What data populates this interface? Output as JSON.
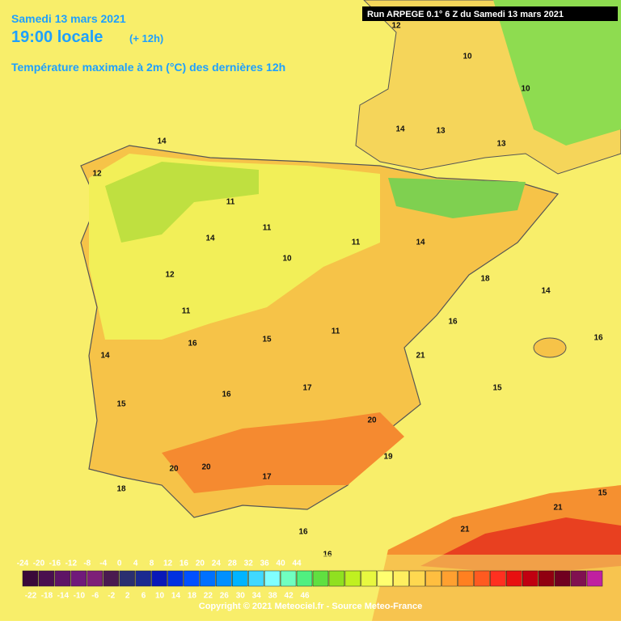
{
  "header": {
    "date": "Samedi 13 mars 2021",
    "time": "19:00 locale",
    "offset": "(+ 12h)",
    "parameter": "Température maximale à 2m (°C) des dernières 12h",
    "run": "Run ARPEGE 0.1° 6 Z du Samedi 13 mars 2021"
  },
  "map_labels": [
    12,
    10,
    10,
    14,
    13,
    13,
    14,
    12,
    11,
    11,
    14,
    10,
    11,
    14,
    12,
    11,
    18,
    14,
    14,
    16,
    15,
    11,
    21,
    15,
    15,
    16,
    17,
    20,
    20,
    20,
    17,
    16,
    16,
    21,
    21,
    15,
    16,
    16,
    19,
    18
  ],
  "colorbar": {
    "top_ticks": [
      -24,
      -20,
      -16,
      -12,
      -8,
      -4,
      0,
      4,
      8,
      12,
      16,
      20,
      24,
      28,
      32,
      36,
      40,
      44
    ],
    "bottom_ticks": [
      -22,
      -18,
      -14,
      -10,
      -6,
      -2,
      2,
      6,
      10,
      14,
      18,
      22,
      26,
      30,
      34,
      38,
      42,
      46
    ],
    "colors": [
      "#3a0a3a",
      "#4a0f4f",
      "#5e1466",
      "#701a7a",
      "#7d1f78",
      "#4a1a50",
      "#2a2f70",
      "#1a2a90",
      "#0a18b8",
      "#0030e0",
      "#0050ff",
      "#0070ff",
      "#0090ff",
      "#00b4ff",
      "#40d8ff",
      "#80ffff",
      "#70ffc0",
      "#50f080",
      "#60e040",
      "#90e020",
      "#c0f020",
      "#e8f840",
      "#ffff70",
      "#ffef60",
      "#ffd850",
      "#ffbe40",
      "#ffa030",
      "#ff8020",
      "#ff5a20",
      "#ff3020",
      "#e81010",
      "#c00010",
      "#900010",
      "#700020",
      "#801050",
      "#c020a0"
    ]
  },
  "footer": {
    "copyright": "Copyright © 2021 Meteociel.fr - Source Meteo-France"
  }
}
